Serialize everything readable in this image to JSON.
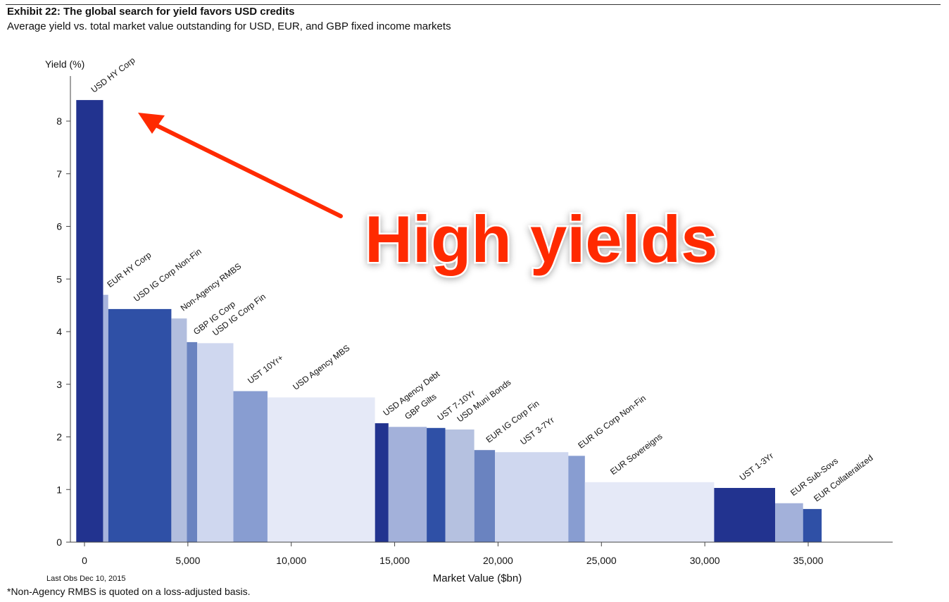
{
  "header": {
    "title": "Exhibit 22: The global search for yield favors USD credits",
    "subtitle": "Average yield vs. total market value outstanding for USD, EUR, and GBP fixed income markets"
  },
  "footer": {
    "footnote": "*Non-Agency RMBS is quoted on a loss-adjusted basis.",
    "last_obs": "Last Obs Dec 10, 2015"
  },
  "annotation": {
    "text": "High yields",
    "color": "#ff2a00",
    "arrow_color": "#ff2a00"
  },
  "chart_data": {
    "type": "bar",
    "variant": "variable-width",
    "xlabel": "Market Value ($bn)",
    "ylabel": "Yield (%)",
    "xlim": [
      -800,
      39000
    ],
    "ylim": [
      0,
      8.8
    ],
    "xticks": [
      0,
      5000,
      10000,
      15000,
      20000,
      25000,
      30000,
      35000
    ],
    "xtick_labels": [
      "0",
      "5,000",
      "10,000",
      "15,000",
      "20,000",
      "25,000",
      "30,000",
      "35,000"
    ],
    "yticks": [
      0,
      1,
      2,
      3,
      4,
      5,
      6,
      7,
      8
    ],
    "yticks_labels": [
      "0",
      "1",
      "2",
      "3",
      "4",
      "5",
      "6",
      "7",
      "8"
    ],
    "grid": false,
    "bars": [
      {
        "label": "USD HY Corp",
        "x0": -400,
        "x1": 900,
        "yield": 8.4,
        "color": "#22338f"
      },
      {
        "label": "EUR HY Corp",
        "x0": 900,
        "x1": 1150,
        "yield": 4.7,
        "color": "#a7b3dc"
      },
      {
        "label": "USD IG Corp Non-Fin",
        "x0": 1150,
        "x1": 4200,
        "yield": 4.43,
        "color": "#2f50a6"
      },
      {
        "label": "Non-Agency RMBS",
        "x0": 4200,
        "x1": 4950,
        "yield": 4.25,
        "color": "#b2bede"
      },
      {
        "label": "GBP IG Corp",
        "x0": 4950,
        "x1": 5450,
        "yield": 3.8,
        "color": "#6a83c0"
      },
      {
        "label": "USD IG Corp Fin",
        "x0": 5450,
        "x1": 7200,
        "yield": 3.78,
        "color": "#cfd7ef"
      },
      {
        "label": "UST 10Yr+",
        "x0": 7200,
        "x1": 8850,
        "yield": 2.87,
        "color": "#889dd1"
      },
      {
        "label": "USD Agency MBS",
        "x0": 8850,
        "x1": 14050,
        "yield": 2.75,
        "color": "#e5e9f7"
      },
      {
        "label": "USD Agency Debt",
        "x0": 14050,
        "x1": 14700,
        "yield": 2.26,
        "color": "#22338f"
      },
      {
        "label": "GBP Gilts",
        "x0": 14700,
        "x1": 16550,
        "yield": 2.19,
        "color": "#a3b1da"
      },
      {
        "label": "UST 7-10Yr",
        "x0": 16550,
        "x1": 17450,
        "yield": 2.17,
        "color": "#2f50a6"
      },
      {
        "label": "USD Muni Bonds",
        "x0": 17450,
        "x1": 18850,
        "yield": 2.14,
        "color": "#b5c1e0"
      },
      {
        "label": "EUR IG Corp Fin",
        "x0": 18850,
        "x1": 19850,
        "yield": 1.75,
        "color": "#6a83c0"
      },
      {
        "label": "UST 3-7Yr",
        "x0": 19850,
        "x1": 23400,
        "yield": 1.71,
        "color": "#cfd7ef"
      },
      {
        "label": "EUR IG Corp Non-Fin",
        "x0": 23400,
        "x1": 24200,
        "yield": 1.64,
        "color": "#889dd1"
      },
      {
        "label": "EUR Sovereigns",
        "x0": 24200,
        "x1": 30450,
        "yield": 1.14,
        "color": "#e5e9f7"
      },
      {
        "label": "UST 1-3Yr",
        "x0": 30450,
        "x1": 33400,
        "yield": 1.03,
        "color": "#22338f"
      },
      {
        "label": "EUR Sub-Sovs",
        "x0": 33400,
        "x1": 34750,
        "yield": 0.74,
        "color": "#a3b1da"
      },
      {
        "label": "EUR Collateralized",
        "x0": 34750,
        "x1": 35650,
        "yield": 0.63,
        "color": "#2f50a6"
      }
    ]
  }
}
